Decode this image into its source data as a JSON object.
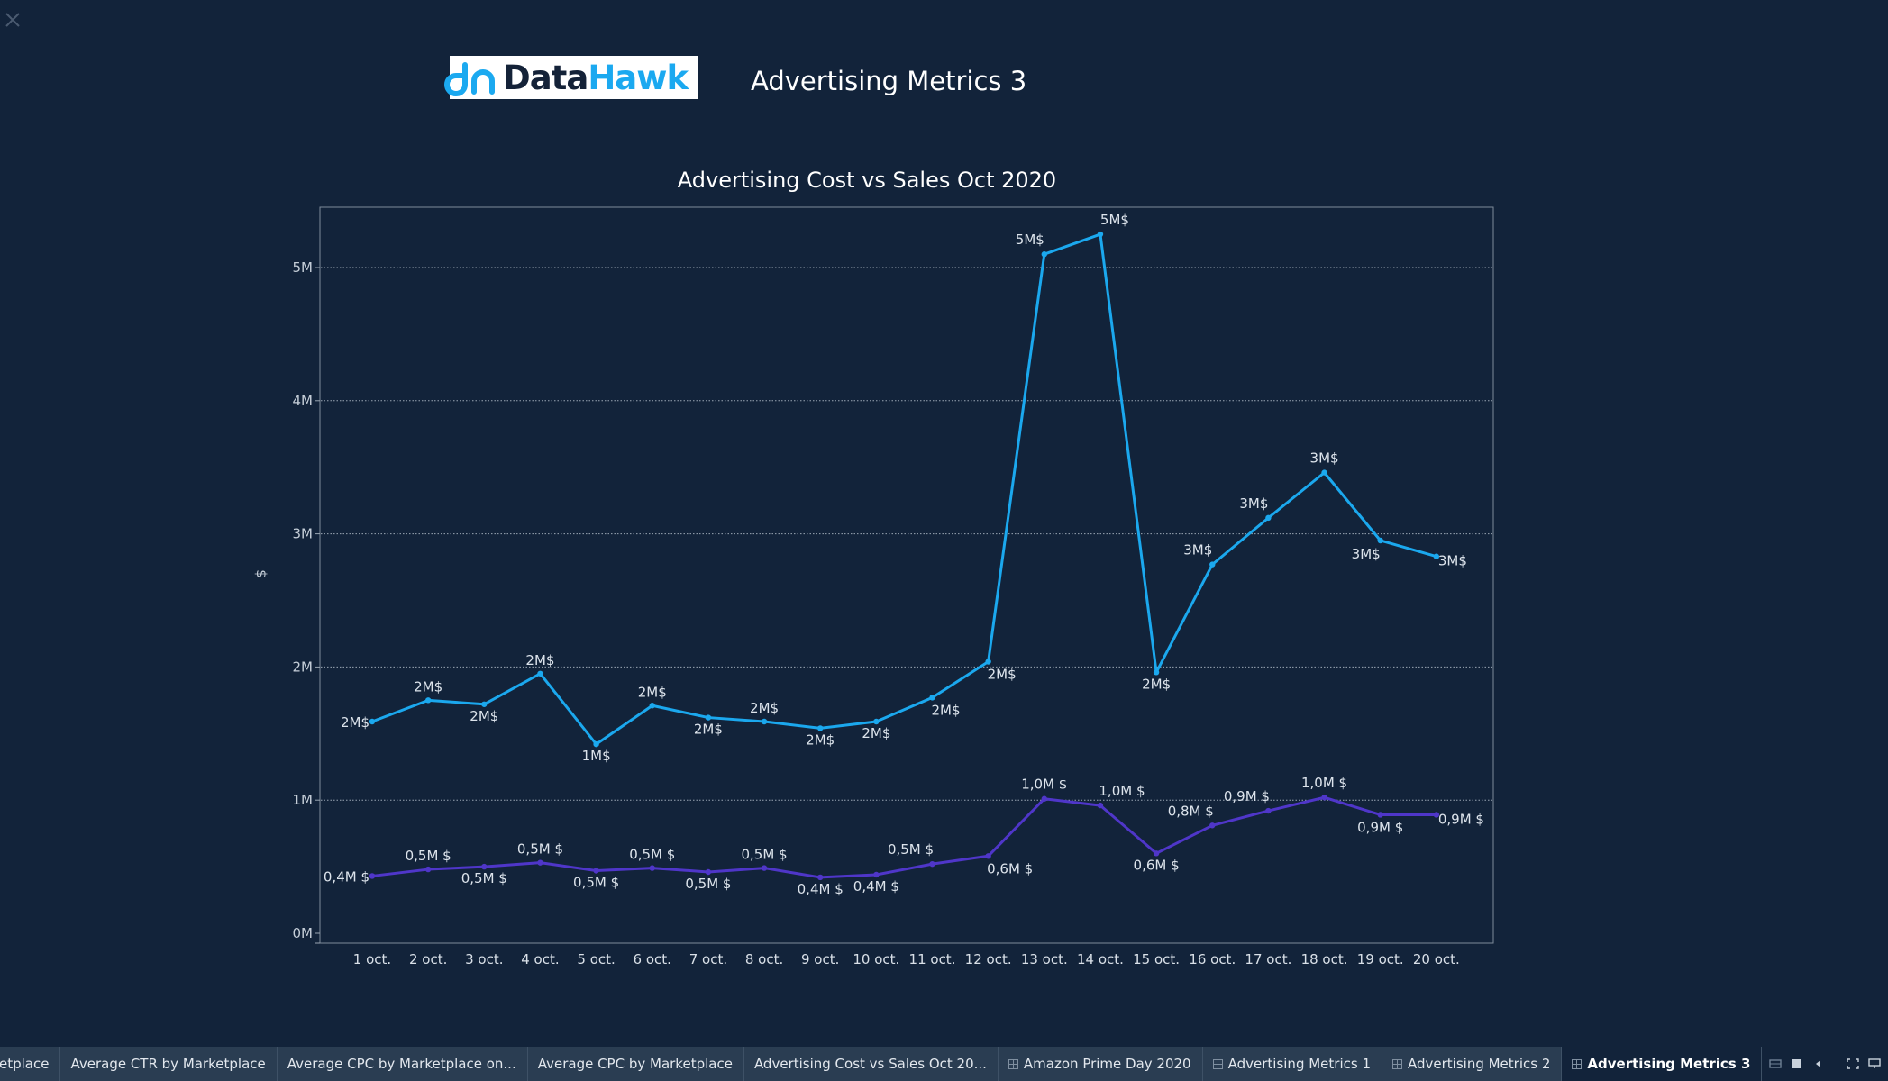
{
  "dashboard": {
    "title": "Advertising Metrics 3",
    "logo": {
      "text_dark": "Data",
      "text_accent": "Hawk",
      "icon": "datahawk-logo-icon",
      "accent": "#1ba9f0",
      "dark": "#142238"
    }
  },
  "icons": {
    "close": "close-icon"
  },
  "chart_data": {
    "type": "line",
    "title": "Advertising Cost vs Sales Oct 2020",
    "ylabel": "$",
    "xlabel": "",
    "ylim": [
      0,
      5500000
    ],
    "yticks": [
      {
        "value": 0,
        "label": "0M"
      },
      {
        "value": 1000000,
        "label": "1M"
      },
      {
        "value": 2000000,
        "label": "2M"
      },
      {
        "value": 3000000,
        "label": "3M"
      },
      {
        "value": 4000000,
        "label": "4M"
      },
      {
        "value": 5000000,
        "label": "5M"
      }
    ],
    "grid": true,
    "categories": [
      "1 oct.",
      "2 oct.",
      "3 oct.",
      "4 oct.",
      "5 oct.",
      "6 oct.",
      "7 oct.",
      "8 oct.",
      "9 oct.",
      "10 oct.",
      "11 oct.",
      "12 oct.",
      "13 oct.",
      "14 oct.",
      "15 oct.",
      "16 oct.",
      "17 oct.",
      "18 oct.",
      "19 oct.",
      "20 oct."
    ],
    "series": [
      {
        "color": "#1ba8ee",
        "values": [
          1590000,
          1750000,
          1720000,
          1950000,
          1420000,
          1710000,
          1620000,
          1590000,
          1540000,
          1590000,
          1770000,
          2040000,
          5100000,
          5250000,
          1960000,
          2770000,
          3120000,
          3460000,
          2950000,
          2830000
        ],
        "labels": [
          "2M$",
          "2M$",
          "2M$",
          "2M$",
          "1M$",
          "2M$",
          "2M$",
          "2M$",
          "2M$",
          "2M$",
          "2M$",
          "2M$",
          "5M$",
          "5M$",
          "2M$",
          "3M$",
          "3M$",
          "3M$",
          "3M$",
          "3M$"
        ]
      },
      {
        "color": "#4f36c9",
        "values": [
          430000,
          480000,
          500000,
          530000,
          470000,
          490000,
          460000,
          490000,
          420000,
          440000,
          520000,
          580000,
          1010000,
          960000,
          600000,
          810000,
          920000,
          1020000,
          890000,
          890000
        ],
        "labels": [
          "0,4M $",
          "0,5M $",
          "0,5M $",
          "0,5M $",
          "0,5M $",
          "0,5M $",
          "0,5M $",
          "0,5M $",
          "0,4M $",
          "0,4M $",
          "0,5M $",
          "0,6M $",
          "1,0M $",
          "1,0M $",
          "0,6M $",
          "0,8M $",
          "0,9M $",
          "1,0M $",
          "0,9M $",
          "0,9M $"
        ]
      }
    ]
  },
  "tabs": [
    {
      "label": "etplace",
      "icon": ""
    },
    {
      "label": "Average CTR by Marketplace",
      "icon": ""
    },
    {
      "label": "Average CPC by Marketplace on...",
      "icon": ""
    },
    {
      "label": "Average CPC by Marketplace",
      "icon": ""
    },
    {
      "label": "Advertising Cost vs Sales Oct 20...",
      "icon": ""
    },
    {
      "label": "Amazon Prime Day 2020",
      "icon": "dashboard-grid-icon"
    },
    {
      "label": "Advertising Metrics 1",
      "icon": "dashboard-grid-icon"
    },
    {
      "label": "Advertising Metrics 2",
      "icon": "dashboard-grid-icon"
    },
    {
      "label": "Advertising Metrics 3",
      "icon": "dashboard-grid-icon",
      "active": true
    }
  ],
  "toolbar": {
    "icons": [
      "sheet-sorter-icon",
      "tabs-view-icon",
      "previous-icon",
      "fullscreen-icon",
      "presentation-icon"
    ]
  }
}
